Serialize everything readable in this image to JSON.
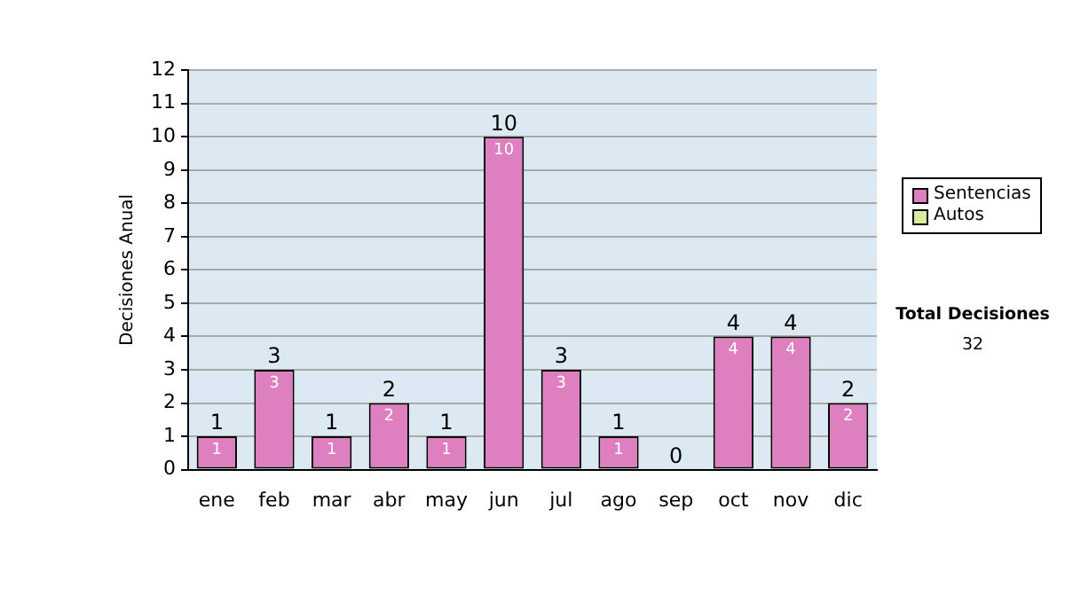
{
  "chart_data": {
    "type": "bar",
    "stacked": true,
    "ylabel": "Decisiones Anual",
    "categories": [
      "ene",
      "feb",
      "mar",
      "abr",
      "may",
      "jun",
      "jul",
      "ago",
      "sep",
      "oct",
      "nov",
      "dic"
    ],
    "series": [
      {
        "name": "Sentencias",
        "color": "#de80c0",
        "values": [
          1,
          3,
          1,
          2,
          1,
          10,
          3,
          1,
          0,
          4,
          4,
          2
        ],
        "value_labels": [
          "1",
          "3",
          "1",
          "2",
          "1",
          "10",
          "3",
          "1",
          null,
          "4",
          "4",
          "2"
        ]
      },
      {
        "name": "Autos",
        "color": "#d8eca0",
        "values": [
          0,
          0,
          0,
          0,
          0,
          0,
          0,
          0,
          0,
          0,
          0,
          0
        ]
      }
    ],
    "totals": [
      "1",
      "3",
      "1",
      "2",
      "1",
      "10",
      "3",
      "1",
      "0",
      "4",
      "4",
      "2"
    ],
    "ylim": [
      0,
      12
    ],
    "yticks": [
      0,
      1,
      2,
      3,
      4,
      5,
      6,
      7,
      8,
      9,
      10,
      11,
      12
    ],
    "grid": "y",
    "legend": "right",
    "annotations": [
      "Total Decisiones",
      "32"
    ]
  }
}
